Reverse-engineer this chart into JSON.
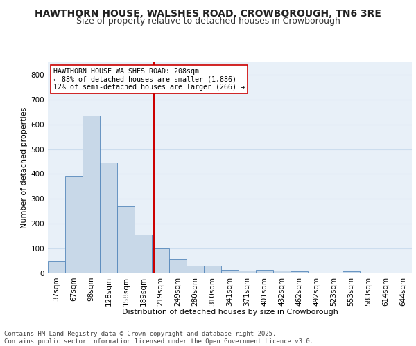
{
  "title1": "HAWTHORN HOUSE, WALSHES ROAD, CROWBOROUGH, TN6 3RE",
  "title2": "Size of property relative to detached houses in Crowborough",
  "xlabel": "Distribution of detached houses by size in Crowborough",
  "ylabel": "Number of detached properties",
  "bin_labels": [
    "37sqm",
    "67sqm",
    "98sqm",
    "128sqm",
    "158sqm",
    "189sqm",
    "219sqm",
    "249sqm",
    "280sqm",
    "310sqm",
    "341sqm",
    "371sqm",
    "401sqm",
    "432sqm",
    "462sqm",
    "492sqm",
    "523sqm",
    "553sqm",
    "583sqm",
    "614sqm",
    "644sqm"
  ],
  "bar_heights": [
    50,
    390,
    635,
    445,
    270,
    155,
    100,
    58,
    30,
    30,
    15,
    10,
    15,
    12,
    8,
    0,
    0,
    8,
    0,
    0,
    0
  ],
  "bar_color": "#c8d8e8",
  "bar_edge_color": "#5588bb",
  "vline_color": "#cc0000",
  "legend_text": "HAWTHORN HOUSE WALSHES ROAD: 208sqm\n← 88% of detached houses are smaller (1,886)\n12% of semi-detached houses are larger (266) →",
  "legend_box_color": "#ffffff",
  "legend_box_edge": "#cc0000",
  "ylim": [
    0,
    850
  ],
  "yticks": [
    0,
    100,
    200,
    300,
    400,
    500,
    600,
    700,
    800
  ],
  "grid_color": "#ccddee",
  "bg_color": "#e8f0f8",
  "footer": "Contains HM Land Registry data © Crown copyright and database right 2025.\nContains public sector information licensed under the Open Government Licence v3.0.",
  "title_fontsize": 10,
  "subtitle_fontsize": 9,
  "axis_label_fontsize": 8,
  "tick_fontsize": 7.5,
  "footer_fontsize": 6.5
}
